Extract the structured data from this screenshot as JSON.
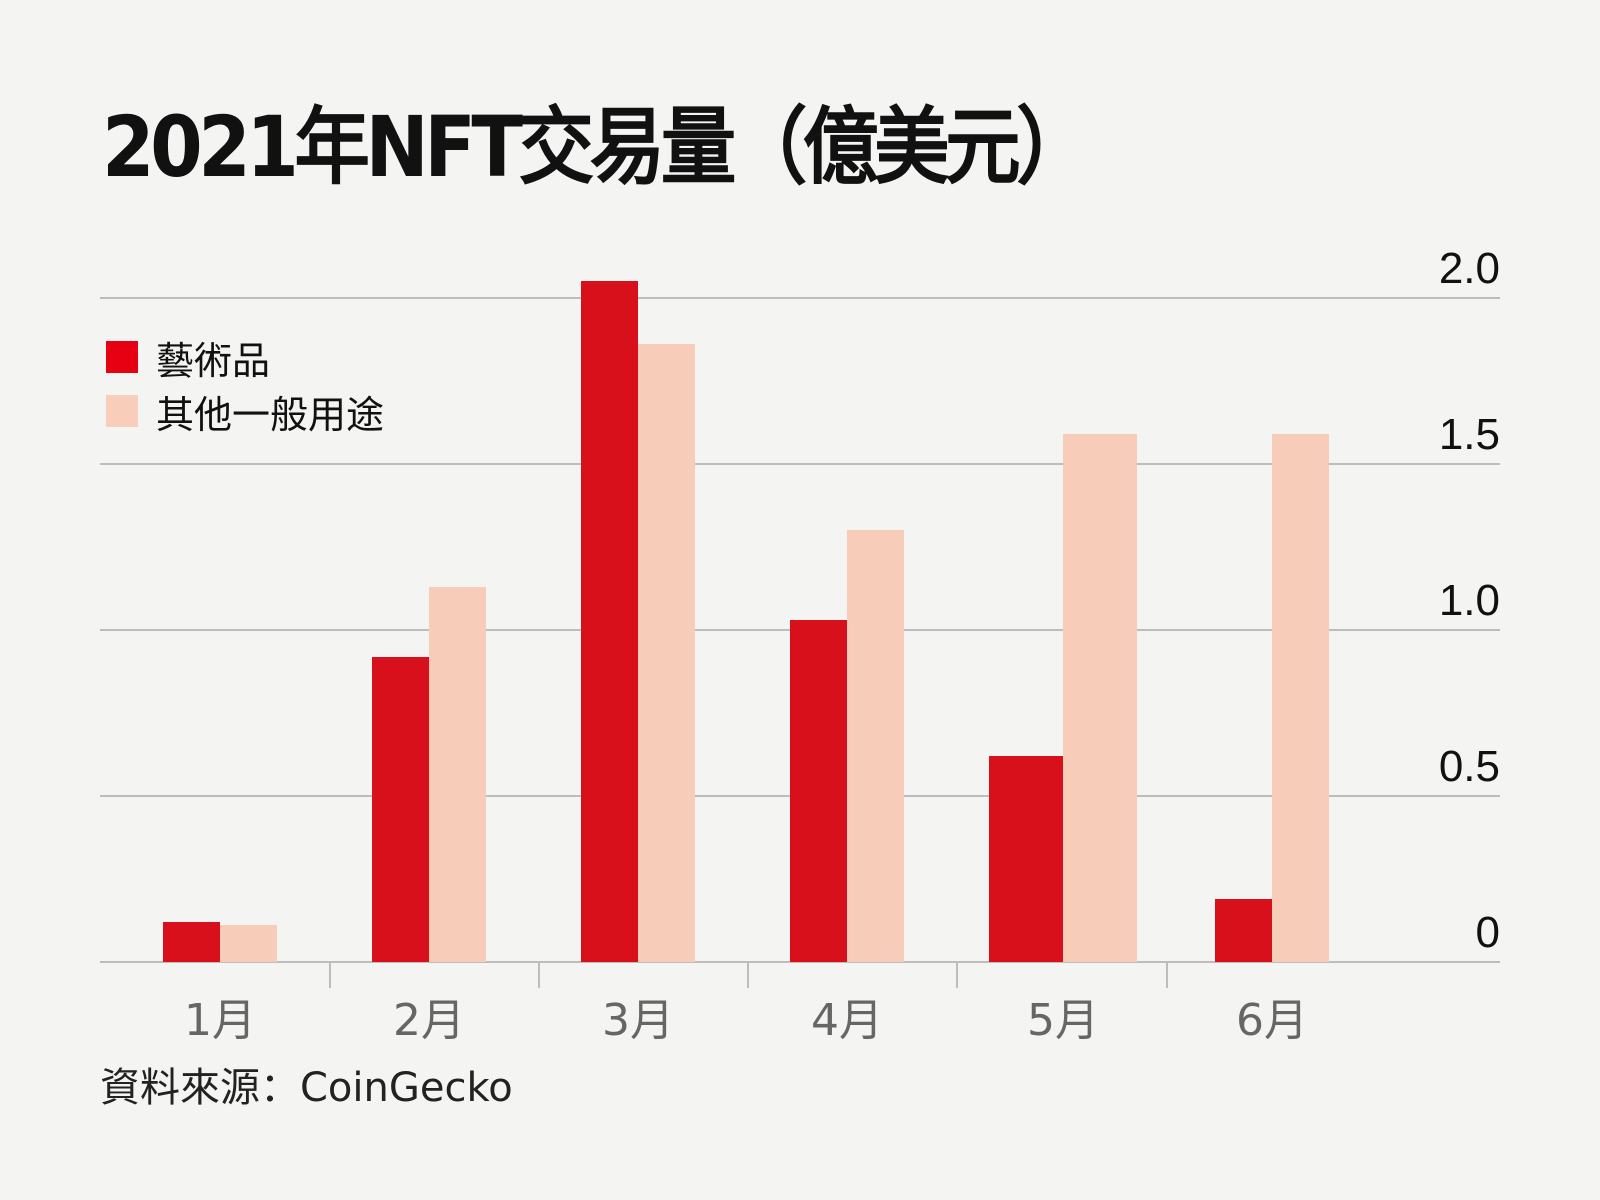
{
  "title": "2021年NFT交易量（億美元）",
  "legend": [
    {
      "label": "藝術品",
      "color": "#e60012"
    },
    {
      "label": "其他一般用途",
      "color": "#f8cdb9"
    }
  ],
  "source": "資料來源：CoinGecko",
  "yticks": [
    "2.0",
    "1.5",
    "1.0",
    "0.5",
    "0"
  ],
  "xlabels": [
    "1月",
    "2月",
    "3月",
    "4月",
    "5月",
    "6月"
  ],
  "chart_data": {
    "type": "bar",
    "title": "2021年NFT交易量（億美元）",
    "xlabel": "",
    "ylabel": "億美元",
    "categories": [
      "1月",
      "2月",
      "3月",
      "4月",
      "5月",
      "6月"
    ],
    "series": [
      {
        "name": "藝術品",
        "color": "#d7101b",
        "values": [
          0.12,
          0.92,
          2.05,
          1.03,
          0.62,
          0.19
        ]
      },
      {
        "name": "其他一般用途",
        "color": "#f7cdb9",
        "values": [
          0.11,
          1.13,
          1.86,
          1.3,
          1.59,
          1.59
        ]
      }
    ],
    "ylim": [
      0,
      2.0
    ],
    "yticks": [
      0,
      0.5,
      1.0,
      1.5,
      2.0
    ],
    "grid": true,
    "y_axis_position": "right",
    "legend_position": "top-left",
    "source": "CoinGecko"
  }
}
